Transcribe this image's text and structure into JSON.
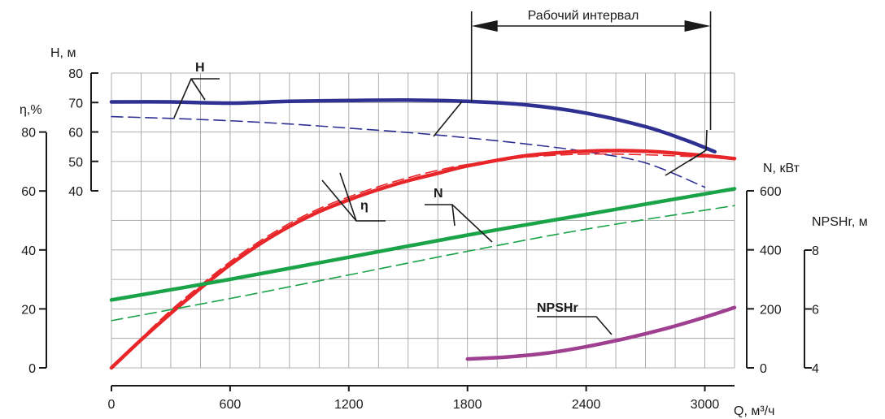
{
  "chart_data": {
    "type": "line",
    "title": "",
    "xlabel": "Q, м³/ч",
    "xlim": [
      0,
      3150
    ],
    "x_ticks": [
      "0",
      "600",
      "1200",
      "1800",
      "2400",
      "3000"
    ],
    "grid": true,
    "axes": {
      "head": {
        "label": "H, м",
        "ticks": [
          "40",
          "50",
          "60",
          "70",
          "80"
        ],
        "ylim": [
          40,
          80
        ],
        "side": "left"
      },
      "efficiency": {
        "label": "η,%",
        "ticks": [
          "0",
          "20",
          "40",
          "60",
          "80"
        ],
        "ylim": [
          0,
          100
        ],
        "side": "left"
      },
      "power": {
        "label": "N, кВт",
        "ticks": [
          "0",
          "200",
          "400",
          "600"
        ],
        "ylim": [
          0,
          600
        ],
        "side": "right"
      },
      "npshr": {
        "label": "NPSHr, м",
        "ticks": [
          "4",
          "6",
          "8"
        ],
        "ylim": [
          4,
          8
        ],
        "side": "right"
      }
    },
    "working_interval": {
      "label": "Рабочий интервал",
      "x_range": [
        1800,
        3000
      ]
    },
    "series": [
      {
        "name": "H",
        "axis": "head",
        "style": "solid",
        "color": "#2e3192",
        "x": [
          0,
          300,
          600,
          900,
          1200,
          1500,
          1800,
          2100,
          2400,
          2700,
          2900,
          3050
        ],
        "y": [
          70.2,
          70.2,
          69.8,
          70.4,
          70.7,
          70.8,
          70.4,
          69.2,
          66.4,
          61.8,
          57.3,
          53.3
        ]
      },
      {
        "name": "",
        "axis": "head",
        "style": "dashed",
        "color": "#2e3192",
        "x": [
          0,
          300,
          600,
          900,
          1200,
          1500,
          1800,
          2100,
          2400,
          2700,
          3000
        ],
        "y": [
          65.2,
          64.6,
          63.8,
          62.7,
          61.3,
          59.8,
          58.0,
          55.9,
          53.3,
          49.5,
          41.2
        ]
      },
      {
        "name": "η",
        "axis": "efficiency",
        "style": "solid",
        "color": "#e8262a",
        "x": [
          0,
          150,
          300,
          450,
          600,
          750,
          900,
          1050,
          1200,
          1350,
          1500,
          1650,
          1800,
          2100,
          2400,
          2700,
          3000,
          3150
        ],
        "y": [
          0,
          9.5,
          18.5,
          27,
          35,
          42,
          48,
          53,
          57,
          60.5,
          63.5,
          66,
          68.5,
          72,
          73.5,
          73.5,
          72,
          71
        ]
      },
      {
        "name": "",
        "axis": "efficiency",
        "style": "dashed",
        "color": "#e8262a",
        "x": [
          0,
          150,
          300,
          450,
          600,
          750,
          900,
          1050,
          1200,
          1350,
          1500,
          1650,
          1800,
          2100,
          2400,
          2700,
          3000
        ],
        "y": [
          0,
          10,
          19.5,
          28,
          36,
          43,
          49,
          54,
          58,
          61.5,
          64.5,
          67,
          69,
          71.5,
          72.5,
          72.3,
          71.5
        ]
      },
      {
        "name": "N",
        "axis": "power",
        "style": "solid",
        "color": "#1ba34a",
        "x": [
          0,
          600,
          1200,
          1800,
          2400,
          3150
        ],
        "y": [
          230,
          300,
          375,
          450,
          520,
          607
        ]
      },
      {
        "name": "",
        "axis": "power",
        "style": "dashed",
        "color": "#1ba34a",
        "x": [
          0,
          600,
          1200,
          1800,
          2400,
          3150
        ],
        "y": [
          160,
          235,
          315,
          395,
          470,
          550
        ]
      },
      {
        "name": "NPSHr",
        "axis": "npshr",
        "style": "solid",
        "color": "#9e3f8f",
        "x": [
          1800,
          2000,
          2200,
          2400,
          2600,
          2800,
          3000,
          3150
        ],
        "y": [
          4.3,
          4.37,
          4.5,
          4.72,
          5.0,
          5.33,
          5.72,
          6.05
        ]
      }
    ]
  }
}
